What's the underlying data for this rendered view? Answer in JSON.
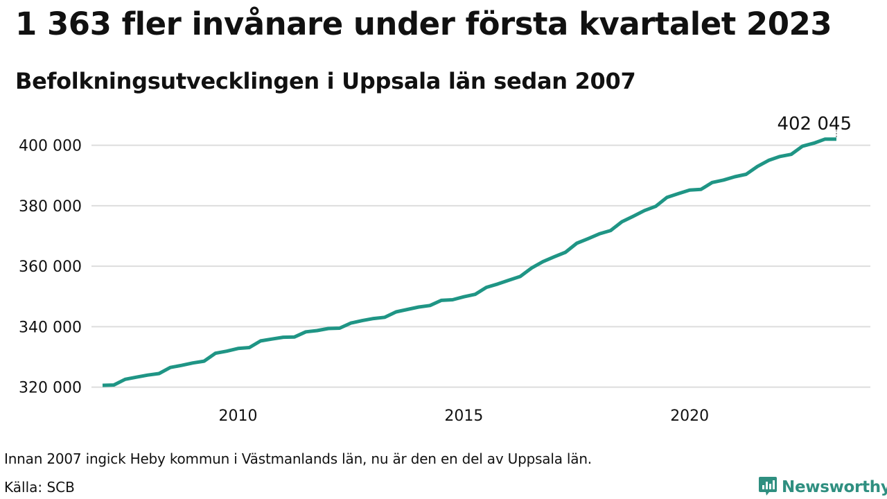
{
  "header": {
    "title": "1 363 fler invånare under första kvartalet 2023",
    "subtitle": "Befolkningsutvecklingen i Uppsala län sedan 2007"
  },
  "footer": {
    "note": "Innan 2007 ingick Heby kommun i Västmanlands län, nu är den en del av Uppsala län.",
    "source": "Källa: SCB",
    "brand": "Newsworthy",
    "brand_icon": "bar-chart-speech-bubble-icon",
    "brand_color": "#2f8f80"
  },
  "colors": {
    "line": "#1f9585",
    "grid": "#dddddd"
  },
  "chart_data": {
    "type": "line",
    "title": "1 363 fler invånare under första kvartalet 2023",
    "subtitle": "Befolkningsutvecklingen i Uppsala län sedan 2007",
    "xlabel": "",
    "ylabel": "",
    "grid": true,
    "legend": "none",
    "xlim": [
      2007.0,
      2023.25
    ],
    "ylim": [
      320000,
      402045
    ],
    "x_ticks": [
      2010,
      2015,
      2020
    ],
    "x_tick_labels": [
      "2010",
      "2015",
      "2020"
    ],
    "y_ticks": [
      320000,
      340000,
      360000,
      380000,
      400000
    ],
    "y_tick_labels": [
      "320 000",
      "340 000",
      "360 000",
      "380 000",
      "400 000"
    ],
    "end_label": "402 045",
    "series": [
      {
        "x": [
          2007.0,
          2007.25,
          2007.5,
          2007.75,
          2008.0,
          2008.25,
          2008.5,
          2008.75,
          2009.0,
          2009.25,
          2009.5,
          2009.75,
          2010.0,
          2010.25,
          2010.5,
          2010.75,
          2011.0,
          2011.25,
          2011.5,
          2011.75,
          2012.0,
          2012.25,
          2012.5,
          2012.75,
          2013.0,
          2013.25,
          2013.5,
          2013.75,
          2014.0,
          2014.25,
          2014.5,
          2014.75,
          2015.0,
          2015.25,
          2015.5,
          2015.75,
          2016.0,
          2016.25,
          2016.5,
          2016.75,
          2017.0,
          2017.25,
          2017.5,
          2017.75,
          2018.0,
          2018.25,
          2018.5,
          2018.75,
          2019.0,
          2019.25,
          2019.5,
          2019.75,
          2020.0,
          2020.25,
          2020.5,
          2020.75,
          2021.0,
          2021.25,
          2021.5,
          2021.75,
          2022.0,
          2022.25,
          2022.5,
          2022.75,
          2023.0,
          2023.25
        ],
        "values": [
          320600,
          320700,
          322600,
          323300,
          324000,
          324500,
          326500,
          327200,
          328000,
          328600,
          331200,
          331900,
          332800,
          333100,
          335300,
          335900,
          336500,
          336600,
          338300,
          338700,
          339400,
          339500,
          341200,
          342000,
          342700,
          343100,
          344900,
          345700,
          346500,
          347000,
          348700,
          348900,
          349900,
          350700,
          353000,
          354100,
          355400,
          356600,
          359400,
          361500,
          363100,
          364600,
          367600,
          369100,
          370700,
          371800,
          374700,
          376500,
          378400,
          379800,
          382800,
          384000,
          385200,
          385400,
          387700,
          388500,
          389600,
          390400,
          393000,
          395000,
          396300,
          397000,
          399700,
          400700,
          402045,
          402045
        ]
      }
    ]
  }
}
